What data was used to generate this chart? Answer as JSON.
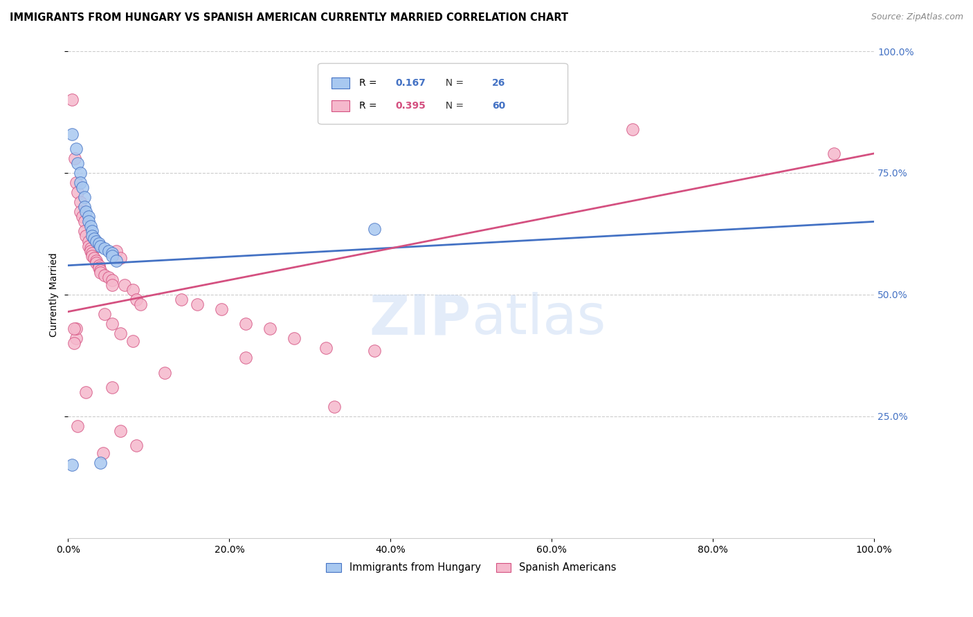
{
  "title": "IMMIGRANTS FROM HUNGARY VS SPANISH AMERICAN CURRENTLY MARRIED CORRELATION CHART",
  "source": "Source: ZipAtlas.com",
  "ylabel": "Currently Married",
  "legend1_r": "0.167",
  "legend1_n": "26",
  "legend2_r": "0.395",
  "legend2_n": "60",
  "legend1_label": "Immigrants from Hungary",
  "legend2_label": "Spanish Americans",
  "blue_color": "#a8c8f0",
  "pink_color": "#f5b8cc",
  "blue_line_color": "#4472c4",
  "pink_line_color": "#d45080",
  "blue_r_color": "#4472c4",
  "pink_r_color": "#4472c4",
  "n_color": "#333333",
  "blue_scatter": [
    [
      0.5,
      83.0
    ],
    [
      1.0,
      80.0
    ],
    [
      1.2,
      77.0
    ],
    [
      1.5,
      75.0
    ],
    [
      1.5,
      73.0
    ],
    [
      1.8,
      72.0
    ],
    [
      2.0,
      70.0
    ],
    [
      2.0,
      68.0
    ],
    [
      2.2,
      67.0
    ],
    [
      2.5,
      66.0
    ],
    [
      2.5,
      65.0
    ],
    [
      2.8,
      64.0
    ],
    [
      3.0,
      63.0
    ],
    [
      3.0,
      62.0
    ],
    [
      3.2,
      61.5
    ],
    [
      3.5,
      61.0
    ],
    [
      3.8,
      60.5
    ],
    [
      4.0,
      60.0
    ],
    [
      4.5,
      59.5
    ],
    [
      5.0,
      59.0
    ],
    [
      5.5,
      58.5
    ],
    [
      5.5,
      58.0
    ],
    [
      6.0,
      57.0
    ],
    [
      38.0,
      63.5
    ],
    [
      4.0,
      15.5
    ],
    [
      0.5,
      15.0
    ]
  ],
  "pink_scatter": [
    [
      0.5,
      90.0
    ],
    [
      0.8,
      78.0
    ],
    [
      1.0,
      73.0
    ],
    [
      1.2,
      71.0
    ],
    [
      1.5,
      69.0
    ],
    [
      1.5,
      67.0
    ],
    [
      1.8,
      66.0
    ],
    [
      2.0,
      65.0
    ],
    [
      2.0,
      63.0
    ],
    [
      2.2,
      62.0
    ],
    [
      2.5,
      61.0
    ],
    [
      2.5,
      60.0
    ],
    [
      2.8,
      59.5
    ],
    [
      2.8,
      59.0
    ],
    [
      3.0,
      58.5
    ],
    [
      3.0,
      58.0
    ],
    [
      3.2,
      57.5
    ],
    [
      3.5,
      57.0
    ],
    [
      3.5,
      56.5
    ],
    [
      3.8,
      56.0
    ],
    [
      3.8,
      55.5
    ],
    [
      4.0,
      55.0
    ],
    [
      4.0,
      54.5
    ],
    [
      4.5,
      54.0
    ],
    [
      5.0,
      53.5
    ],
    [
      5.5,
      53.0
    ],
    [
      5.5,
      52.0
    ],
    [
      6.0,
      59.0
    ],
    [
      6.5,
      57.5
    ],
    [
      7.0,
      52.0
    ],
    [
      8.0,
      51.0
    ],
    [
      8.5,
      49.0
    ],
    [
      9.0,
      48.0
    ],
    [
      4.5,
      46.0
    ],
    [
      5.5,
      44.0
    ],
    [
      6.5,
      42.0
    ],
    [
      8.0,
      40.5
    ],
    [
      14.0,
      49.0
    ],
    [
      16.0,
      48.0
    ],
    [
      19.0,
      47.0
    ],
    [
      22.0,
      44.0
    ],
    [
      22.0,
      37.0
    ],
    [
      25.0,
      43.0
    ],
    [
      28.0,
      41.0
    ],
    [
      32.0,
      39.0
    ],
    [
      33.0,
      27.0
    ],
    [
      38.0,
      38.5
    ],
    [
      12.0,
      34.0
    ],
    [
      5.5,
      31.0
    ],
    [
      6.5,
      22.0
    ],
    [
      8.5,
      19.0
    ],
    [
      1.2,
      23.0
    ],
    [
      2.2,
      30.0
    ],
    [
      4.3,
      17.5
    ],
    [
      1.0,
      41.0
    ],
    [
      1.0,
      43.0
    ],
    [
      0.7,
      43.0
    ],
    [
      0.7,
      40.0
    ],
    [
      70.0,
      84.0
    ],
    [
      95.0,
      79.0
    ]
  ],
  "blue_line": {
    "x0": 0,
    "x1": 100,
    "y0": 56.0,
    "y1": 65.0
  },
  "pink_line": {
    "x0": 0,
    "x1": 100,
    "y0": 46.5,
    "y1": 79.0
  },
  "xlim": [
    0,
    100
  ],
  "ylim": [
    0,
    100
  ],
  "xticks": [
    0,
    20,
    40,
    60,
    80,
    100
  ],
  "yticks": [
    25,
    50,
    75,
    100
  ],
  "watermark": "ZIPatlas",
  "figsize": [
    14.06,
    8.92
  ],
  "dpi": 100
}
